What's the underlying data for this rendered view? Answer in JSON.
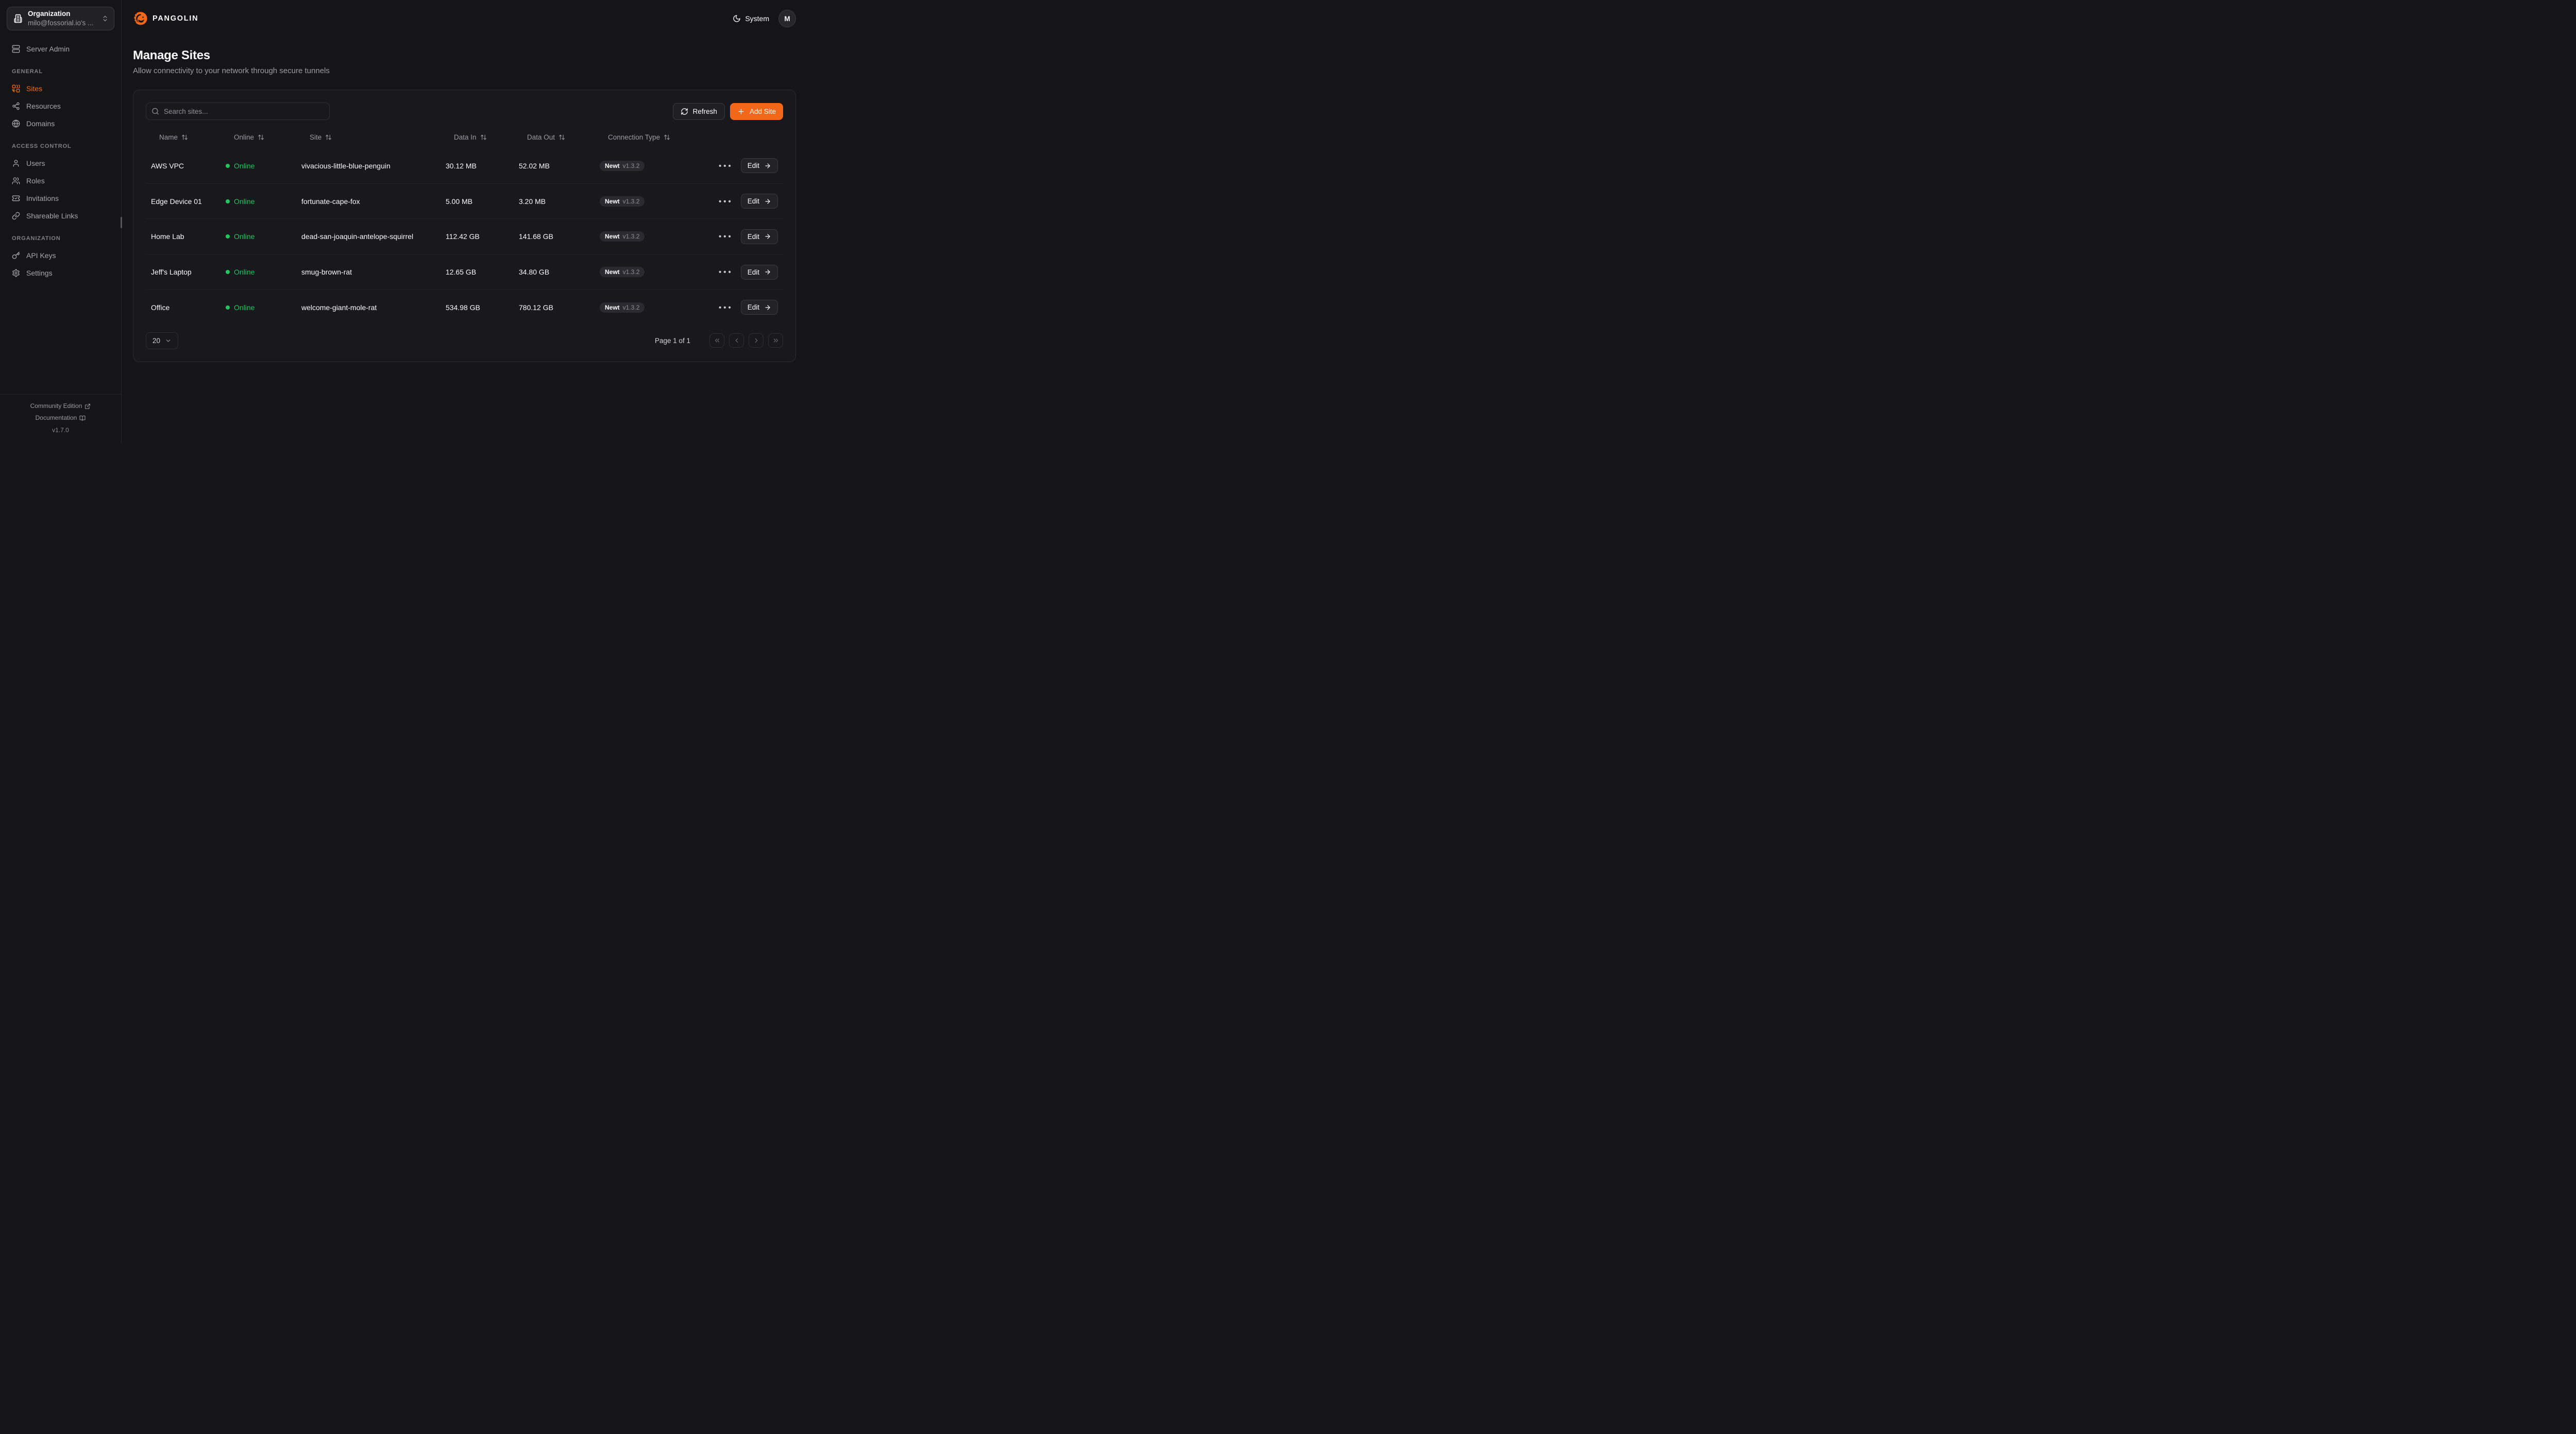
{
  "colors": {
    "accent": "#F36718",
    "online": "#22c55e"
  },
  "sidebar": {
    "org_switcher": {
      "title": "Organization",
      "subtitle": "milo@fossorial.io's ...",
      "icon": "building-icon"
    },
    "server_admin": {
      "label": "Server Admin",
      "icon": "server-icon"
    },
    "sections": [
      {
        "label": "GENERAL",
        "items": [
          {
            "label": "Sites",
            "icon": "combine-icon",
            "active": true
          },
          {
            "label": "Resources",
            "icon": "share-icon",
            "active": false
          },
          {
            "label": "Domains",
            "icon": "globe-icon",
            "active": false
          }
        ]
      },
      {
        "label": "ACCESS CONTROL",
        "items": [
          {
            "label": "Users",
            "icon": "user-icon",
            "active": false
          },
          {
            "label": "Roles",
            "icon": "users-icon",
            "active": false
          },
          {
            "label": "Invitations",
            "icon": "ticket-check-icon",
            "active": false
          },
          {
            "label": "Shareable Links",
            "icon": "link-icon",
            "active": false
          }
        ]
      },
      {
        "label": "ORGANIZATION",
        "items": [
          {
            "label": "API Keys",
            "icon": "key-icon",
            "active": false
          },
          {
            "label": "Settings",
            "icon": "gear-icon",
            "active": false
          }
        ]
      }
    ],
    "footer": {
      "community_label": "Community Edition",
      "documentation_label": "Documentation",
      "version": "v1.7.0"
    }
  },
  "header": {
    "brand": "PANGOLIN",
    "theme_label": "System",
    "avatar_initial": "M"
  },
  "page": {
    "title": "Manage Sites",
    "subtitle": "Allow connectivity to your network through secure tunnels"
  },
  "toolbar": {
    "search_placeholder": "Search sites...",
    "refresh_label": "Refresh",
    "add_site_label": "Add Site"
  },
  "table": {
    "columns": [
      "Name",
      "Online",
      "Site",
      "Data In",
      "Data Out",
      "Connection Type"
    ],
    "edit_label": "Edit",
    "rows": [
      {
        "name": "AWS VPC",
        "status": "Online",
        "site": "vivacious-little-blue-penguin",
        "data_in": "30.12 MB",
        "data_out": "52.02 MB",
        "connection_type": "Newt",
        "connection_version": "v1.3.2"
      },
      {
        "name": "Edge Device 01",
        "status": "Online",
        "site": "fortunate-cape-fox",
        "data_in": "5.00 MB",
        "data_out": "3.20 MB",
        "connection_type": "Newt",
        "connection_version": "v1.3.2"
      },
      {
        "name": "Home Lab",
        "status": "Online",
        "site": "dead-san-joaquin-antelope-squirrel",
        "data_in": "112.42 GB",
        "data_out": "141.68 GB",
        "connection_type": "Newt",
        "connection_version": "v1.3.2"
      },
      {
        "name": "Jeff's Laptop",
        "status": "Online",
        "site": "smug-brown-rat",
        "data_in": "12.65 GB",
        "data_out": "34.80 GB",
        "connection_type": "Newt",
        "connection_version": "v1.3.2"
      },
      {
        "name": "Office",
        "status": "Online",
        "site": "welcome-giant-mole-rat",
        "data_in": "534.98 GB",
        "data_out": "780.12 GB",
        "connection_type": "Newt",
        "connection_version": "v1.3.2"
      }
    ]
  },
  "pagination": {
    "page_size": "20",
    "page_info": "Page 1 of 1"
  }
}
